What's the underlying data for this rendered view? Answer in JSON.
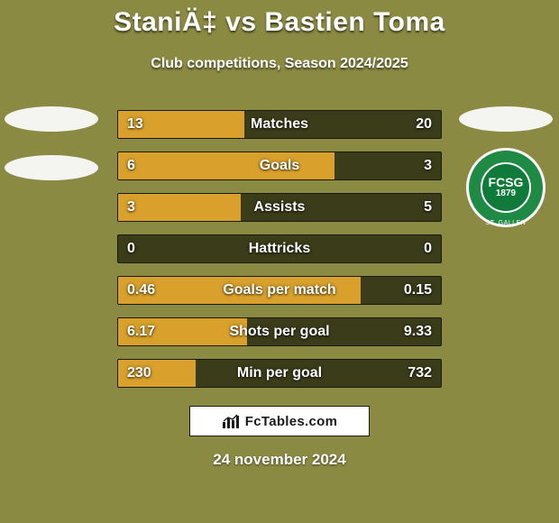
{
  "background_color": "#8b8a43",
  "title": {
    "text": "StaniÄ‡ vs Bastien Toma",
    "fontsize": 30,
    "color": "#ffffff"
  },
  "subtitle": {
    "text": "Club competitions, Season 2024/2025",
    "fontsize": 16,
    "color": "#ffffff"
  },
  "left_crest": {
    "ellipse_colors": [
      "#f4f4f0",
      "#f4f4f0"
    ]
  },
  "right_crest": {
    "ellipse_color": "#f4f4f0",
    "badge": {
      "outer_bg": "#1e8a43",
      "inner_bg": "#0f7a3a",
      "abbr": "FCSG",
      "year": "1879",
      "ring_label": "ST. GALLEN"
    }
  },
  "bars": {
    "track_color": "#3b3c1a",
    "left_fill_color": "#d9a12b",
    "right_fill_color": "#3b3c1a",
    "border_color": "#1a1a0e",
    "value_fontsize": 16,
    "label_fontsize": 16,
    "label_color": "#ffffff",
    "rows": [
      {
        "label": "Matches",
        "left_val": "13",
        "right_val": "20",
        "left_pct": 39,
        "right_pct": 61
      },
      {
        "label": "Goals",
        "left_val": "6",
        "right_val": "3",
        "left_pct": 67,
        "right_pct": 33
      },
      {
        "label": "Assists",
        "left_val": "3",
        "right_val": "5",
        "left_pct": 38,
        "right_pct": 62
      },
      {
        "label": "Hattricks",
        "left_val": "0",
        "right_val": "0",
        "left_pct": 0,
        "right_pct": 0
      },
      {
        "label": "Goals per match",
        "left_val": "0.46",
        "right_val": "0.15",
        "left_pct": 75,
        "right_pct": 25
      },
      {
        "label": "Shots per goal",
        "left_val": "6.17",
        "right_val": "9.33",
        "left_pct": 40,
        "right_pct": 60
      },
      {
        "label": "Min per goal",
        "left_val": "230",
        "right_val": "732",
        "left_pct": 24,
        "right_pct": 76
      }
    ]
  },
  "brand": {
    "text": "FcTables.com",
    "text_color": "#1a1a1a",
    "fontsize": 15,
    "icon_color": "#1a1a1a"
  },
  "date": {
    "text": "24 november 2024",
    "fontsize": 17,
    "color": "#ffffff"
  }
}
